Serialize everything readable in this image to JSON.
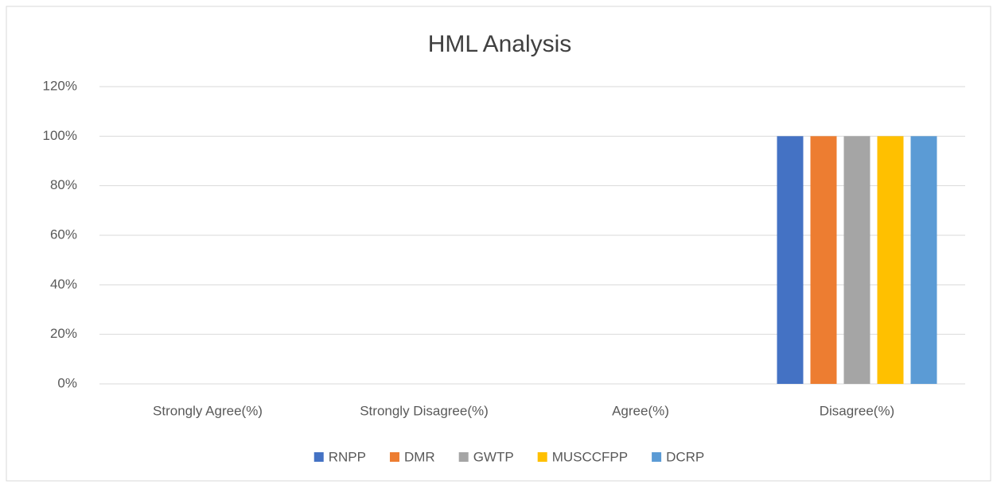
{
  "chart_data": {
    "type": "bar",
    "title": "HML Analysis",
    "categories": [
      "Strongly Agree(%)",
      "Strongly Disagree(%)",
      "Agree(%)",
      "Disagree(%)"
    ],
    "series": [
      {
        "name": "RNPP",
        "color": "#4472c4",
        "values": [
          0,
          0,
          0,
          100
        ]
      },
      {
        "name": "DMR",
        "color": "#ed7d31",
        "values": [
          0,
          0,
          0,
          100
        ]
      },
      {
        "name": "GWTP",
        "color": "#a5a5a5",
        "values": [
          0,
          0,
          0,
          100
        ]
      },
      {
        "name": "MUSCCFPP",
        "color": "#ffc000",
        "values": [
          0,
          0,
          0,
          100
        ]
      },
      {
        "name": "DCRP",
        "color": "#5b9bd5",
        "values": [
          0,
          0,
          0,
          100
        ]
      }
    ],
    "ylim": [
      0,
      120
    ],
    "yticks": [
      {
        "value": 0,
        "label": "0%"
      },
      {
        "value": 20,
        "label": "20%"
      },
      {
        "value": 40,
        "label": "40%"
      },
      {
        "value": 60,
        "label": "60%"
      },
      {
        "value": 80,
        "label": "80%"
      },
      {
        "value": 100,
        "label": "100%"
      },
      {
        "value": 120,
        "label": "120%"
      }
    ],
    "grid": true,
    "legend": "bottom"
  }
}
